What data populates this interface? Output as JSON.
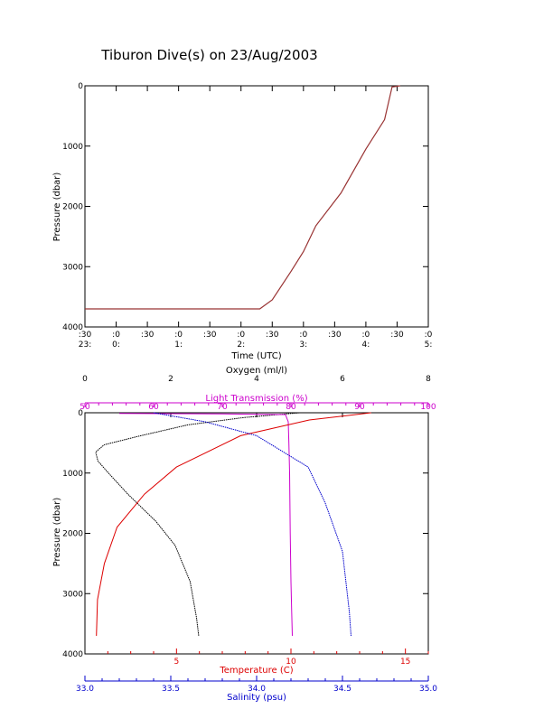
{
  "title": "Tiburon Dive(s) on 23/Aug/2003",
  "colors": {
    "axis": "#000000",
    "light_transmission": "#cc00cc",
    "temperature": "#dd0000",
    "salinity": "#0000cc",
    "oxygen": "#000000",
    "time_trace": "#993333"
  },
  "chart_data": [
    {
      "type": "line",
      "title": "Tiburon Dive(s) on 23/Aug/2003",
      "xlabel": "Time (UTC)",
      "ylabel": "Pressure (dbar)",
      "xlim": [
        -0.5,
        5.0
      ],
      "ylim": [
        4000,
        0
      ],
      "y_ticks": [
        0,
        1000,
        2000,
        3000,
        4000
      ],
      "x_ticks": [
        {
          "x": -0.5,
          "top": ":30",
          "bottom": "23:"
        },
        {
          "x": 0.0,
          "top": ":0",
          "bottom": "0:"
        },
        {
          "x": 0.5,
          "top": ":30",
          "bottom": ""
        },
        {
          "x": 1.0,
          "top": ":0",
          "bottom": "1:"
        },
        {
          "x": 1.5,
          "top": ":30",
          "bottom": ""
        },
        {
          "x": 2.0,
          "top": ":0",
          "bottom": "2:"
        },
        {
          "x": 2.5,
          "top": ":30",
          "bottom": ""
        },
        {
          "x": 3.0,
          "top": ":0",
          "bottom": "3:"
        },
        {
          "x": 3.5,
          "top": ":30",
          "bottom": ""
        },
        {
          "x": 4.0,
          "top": ":0",
          "bottom": "4:"
        },
        {
          "x": 4.5,
          "top": ":30",
          "bottom": ""
        },
        {
          "x": 5.0,
          "top": ":0",
          "bottom": "5:"
        }
      ],
      "series": [
        {
          "x": [
            -0.5,
            2.3,
            2.5,
            2.8,
            3.0,
            3.2,
            3.6,
            4.0,
            4.3,
            4.42,
            4.55
          ],
          "y": [
            3700,
            3700,
            3550,
            3080,
            2750,
            2320,
            1780,
            1050,
            560,
            20,
            0
          ]
        }
      ],
      "grid": false
    },
    {
      "type": "line",
      "ylabel": "Pressure (dbar)",
      "ylim": [
        4000,
        0
      ],
      "y_ticks": [
        0,
        1000,
        2000,
        3000,
        4000
      ],
      "axes": {
        "oxygen": {
          "label": "Oxygen (ml/l)",
          "range": [
            0,
            8
          ],
          "ticks": [
            0,
            2,
            4,
            6,
            8
          ]
        },
        "light_transmission": {
          "label": "Light Transmission (%)",
          "range": [
            50,
            100
          ],
          "ticks": [
            50,
            60,
            70,
            80,
            90,
            100
          ]
        },
        "temperature": {
          "label": "Temperature (C)",
          "range": [
            1,
            16
          ],
          "ticks": [
            5,
            10,
            15
          ]
        },
        "salinity": {
          "label": "Salinity (psu)",
          "range": [
            33.0,
            35.0
          ],
          "ticks": [
            "33.0",
            "33.5",
            "34.0",
            "34.5",
            "35.0"
          ]
        }
      },
      "series": [
        {
          "axis": "oxygen",
          "x": [
            5.0,
            3.7,
            2.4,
            1.3,
            0.45,
            0.25,
            0.3,
            0.55,
            1.0,
            1.65,
            2.1,
            2.45,
            2.6,
            2.65
          ],
          "y": [
            0,
            80,
            200,
            380,
            530,
            650,
            800,
            1000,
            1350,
            1800,
            2200,
            2800,
            3400,
            3700
          ]
        },
        {
          "axis": "light_transmission",
          "x": [
            55,
            70,
            79.2,
            79.6,
            79.7,
            79.8,
            79.9,
            80.0,
            80.1,
            80.2
          ],
          "y": [
            10,
            20,
            30,
            150,
            500,
            1000,
            2000,
            2800,
            3300,
            3700
          ]
        },
        {
          "axis": "temperature",
          "x": [
            13.5,
            10.8,
            7.8,
            5.0,
            3.6,
            2.4,
            1.85,
            1.55,
            1.5
          ],
          "y": [
            0,
            120,
            380,
            900,
            1350,
            1900,
            2500,
            3100,
            3700
          ]
        },
        {
          "axis": "salinity",
          "x": [
            33.4,
            33.7,
            34.0,
            34.3,
            34.4,
            34.45,
            34.5,
            34.52,
            34.54,
            34.55
          ],
          "y": [
            0,
            150,
            380,
            900,
            1500,
            1900,
            2300,
            2800,
            3300,
            3700
          ]
        }
      ],
      "grid": false
    }
  ]
}
